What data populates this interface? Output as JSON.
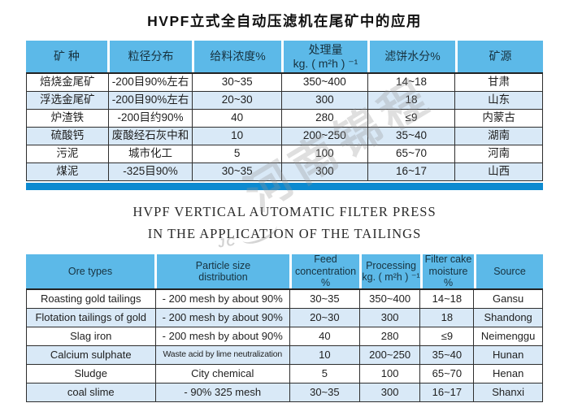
{
  "page": {
    "title_cn": "HVPF立式全自动压滤机在尾矿中的应用",
    "title_en_line1": "HVPF VERTICAL AUTOMATIC FILTER PRESS",
    "title_en_line2": "IN THE APPLICATION OF THE TAILINGS"
  },
  "colors": {
    "header_blue": "#5cb9e8",
    "alt_row_blue": "#d9e9f7",
    "bottom_bar_blue": "#0d8ad0",
    "border": "#2e2e2e"
  },
  "watermark": {
    "text": "河南锦程",
    "logo": "JC"
  },
  "tables": [
    {
      "name": "chinese-application-table",
      "headers": [
        "矿 种",
        "粒径分布",
        "给料浓度%",
        "处理量\nkg. ( m²h ) ⁻¹",
        "滤饼水分%",
        "矿源"
      ],
      "rows": [
        [
          "焙烧金尾矿",
          "-200目90%左右",
          "30~35",
          "350~400",
          "14~18",
          "甘肃"
        ],
        [
          "浮选金尾矿",
          "-200目90%左右",
          "20~30",
          "300",
          "18",
          "山东"
        ],
        [
          "炉渣铁",
          "-200目约90%",
          "40",
          "280",
          "≤9",
          "内蒙古"
        ],
        [
          "硫酸钙",
          "废酸经石灰中和",
          "10",
          "200~250",
          "35~40",
          "湖南"
        ],
        [
          "污泥",
          "城市化工",
          "5",
          "100",
          "65~70",
          "河南"
        ],
        [
          "煤泥",
          "-325目90%",
          "30~35",
          "300",
          "16~17",
          "山西"
        ]
      ]
    },
    {
      "name": "english-application-table",
      "headers": [
        "Ore types",
        "Particle size\ndistribution",
        "Feed\nconcentration\n%",
        "Processing\nkg. ( m²h ) ⁻¹",
        "Filter cake\nmoisture\n%",
        "Source"
      ],
      "rows": [
        [
          "Roasting gold tailings",
          "- 200 mesh by about 90%",
          "30~35",
          "350~400",
          "14~18",
          "Gansu"
        ],
        [
          "Flotation tailings of gold",
          "- 200 mesh by about 90%",
          "20~30",
          "300",
          "18",
          "Shandong"
        ],
        [
          "Slag iron",
          "- 200 mesh by about 90%",
          "40",
          "280",
          "≤9",
          "Neimenggu"
        ],
        [
          "Calcium sulphate",
          "Waste acid by lime neutralization",
          "10",
          "200~250",
          "35~40",
          "Hunan"
        ],
        [
          "Sludge",
          "City chemical",
          "5",
          "100",
          "65~70",
          "Henan"
        ],
        [
          "coal slime",
          "- 90% 325 mesh",
          "30~35",
          "300",
          "16~17",
          "Shanxi"
        ]
      ]
    }
  ]
}
